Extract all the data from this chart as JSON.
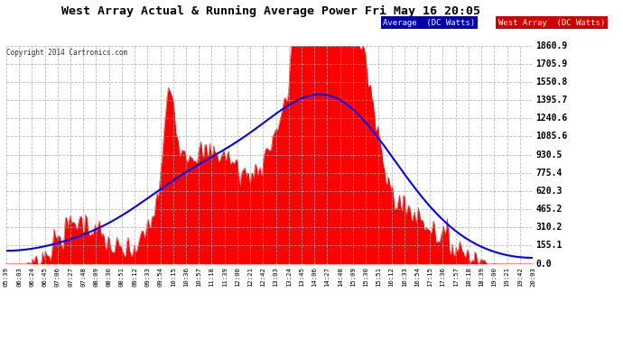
{
  "title": "West Array Actual & Running Average Power Fri May 16 20:05",
  "copyright": "Copyright 2014 Cartronics.com",
  "legend_avg": "Average  (DC Watts)",
  "legend_west": "West Array  (DC Watts)",
  "ylabel_values": [
    0.0,
    155.1,
    310.2,
    465.2,
    620.3,
    775.4,
    930.5,
    1085.6,
    1240.6,
    1395.7,
    1550.8,
    1705.9,
    1860.9
  ],
  "ymax": 1860.9,
  "ymin": 0.0,
  "bg_color": "#ffffff",
  "plot_bg_color": "#ffffff",
  "fill_color": "#ff0000",
  "avg_line_color": "#0000ff",
  "grid_color": "#aaaaaa",
  "title_color": "#000000",
  "tick_label_color": "#000000",
  "time_labels": [
    "05:39",
    "06:03",
    "06:24",
    "06:45",
    "07:06",
    "07:27",
    "07:48",
    "08:09",
    "08:30",
    "08:51",
    "09:12",
    "09:33",
    "09:54",
    "10:15",
    "10:36",
    "10:57",
    "11:18",
    "11:39",
    "12:00",
    "12:21",
    "12:42",
    "13:03",
    "13:24",
    "13:45",
    "14:06",
    "14:27",
    "14:48",
    "15:09",
    "15:30",
    "15:51",
    "16:12",
    "16:33",
    "16:54",
    "17:15",
    "17:36",
    "17:57",
    "18:18",
    "18:39",
    "19:00",
    "19:21",
    "19:42",
    "20:03"
  ]
}
